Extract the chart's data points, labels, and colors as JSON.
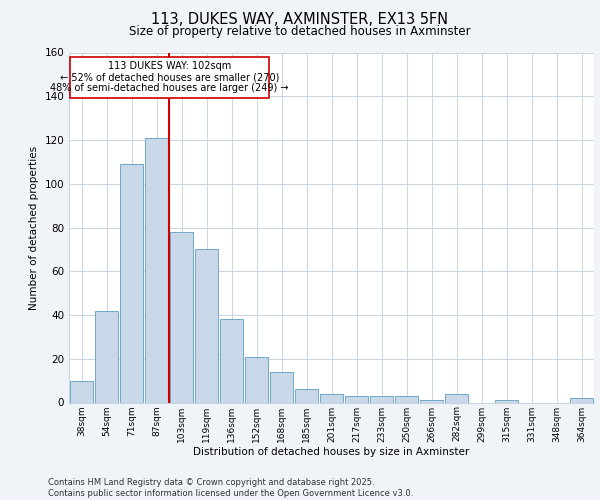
{
  "title": "113, DUKES WAY, AXMINSTER, EX13 5FN",
  "subtitle": "Size of property relative to detached houses in Axminster",
  "xlabel": "Distribution of detached houses by size in Axminster",
  "ylabel": "Number of detached properties",
  "bar_labels": [
    "38sqm",
    "54sqm",
    "71sqm",
    "87sqm",
    "103sqm",
    "119sqm",
    "136sqm",
    "152sqm",
    "168sqm",
    "185sqm",
    "201sqm",
    "217sqm",
    "233sqm",
    "250sqm",
    "266sqm",
    "282sqm",
    "299sqm",
    "315sqm",
    "331sqm",
    "348sqm",
    "364sqm"
  ],
  "bar_values": [
    10,
    42,
    109,
    121,
    78,
    70,
    38,
    21,
    14,
    6,
    4,
    3,
    3,
    3,
    1,
    4,
    0,
    1,
    0,
    0,
    2
  ],
  "bar_color": "#c8d8e8",
  "bar_edge_color": "#6fa8c8",
  "vline_color": "#cc0000",
  "annotation_title": "113 DUKES WAY: 102sqm",
  "annotation_line1": "← 52% of detached houses are smaller (270)",
  "annotation_line2": "48% of semi-detached houses are larger (249) →",
  "footer_line1": "Contains HM Land Registry data © Crown copyright and database right 2025.",
  "footer_line2": "Contains public sector information licensed under the Open Government Licence v3.0.",
  "ylim": [
    0,
    160
  ],
  "yticks": [
    0,
    20,
    40,
    60,
    80,
    100,
    120,
    140,
    160
  ],
  "bg_color": "#f0f4f8",
  "plot_bg_color": "#ffffff"
}
